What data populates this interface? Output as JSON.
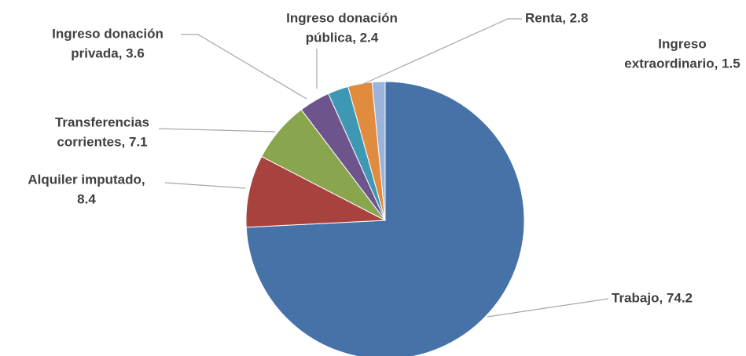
{
  "chart_data": {
    "type": "pie",
    "labels": [
      [
        "Trabajo, 74.2"
      ],
      [
        "Alquiler imputado,",
        "8.4"
      ],
      [
        "Transferencias",
        "corrientes, 7.1"
      ],
      [
        "Ingreso donación",
        "privada, 3.6"
      ],
      [
        "Ingreso donación",
        "pública, 2.4"
      ],
      [
        "Renta, 2.8"
      ],
      [
        "Ingreso",
        "extraordinario, 1.5"
      ]
    ],
    "values": [
      74.2,
      8.4,
      7.1,
      3.6,
      2.4,
      2.8,
      1.5
    ],
    "colors": [
      "#4672a8",
      "#a8423f",
      "#89a54e",
      "#6e548d",
      "#3f98b3",
      "#e08b3d",
      "#9cb4dc"
    ]
  }
}
